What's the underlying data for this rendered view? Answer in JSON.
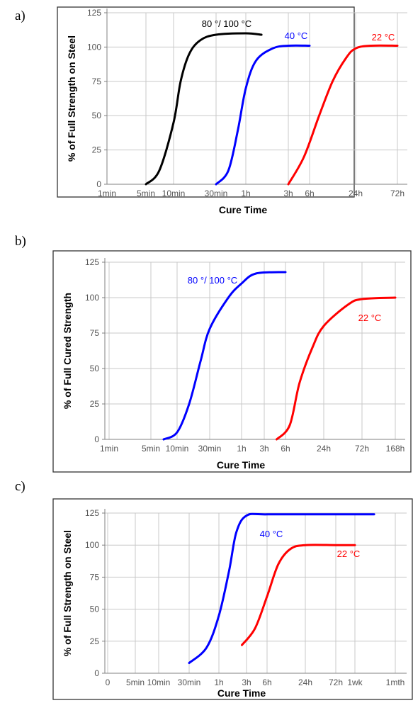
{
  "panels": [
    {
      "letter": "a)"
    },
    {
      "letter": "b)"
    },
    {
      "letter": "c)"
    }
  ],
  "chart_data": [
    {
      "type": "line",
      "title": "",
      "xlabel": "Cure Time",
      "ylabel": "% of Full Strength on Steel",
      "x_scale": "log",
      "x_ticks": [
        "1min",
        "5min",
        "10min",
        "30min",
        "1h",
        "3h",
        "6h",
        "24h",
        "72h"
      ],
      "y_ticks": [
        0,
        25,
        50,
        75,
        100,
        125
      ],
      "ylim": [
        0,
        125
      ],
      "grid": true,
      "series": [
        {
          "name": "80 °/ 100 °C",
          "color": "#000000",
          "points": [
            [
              "5min",
              0
            ],
            [
              "7min",
              10
            ],
            [
              "10min",
              45
            ],
            [
              "12min",
              75
            ],
            [
              "15min",
              95
            ],
            [
              "20min",
              105
            ],
            [
              "30min",
              109
            ],
            [
              "1h",
              110
            ],
            [
              "1.5h",
              109
            ]
          ]
        },
        {
          "name": "40 °C",
          "color": "#0000ff",
          "points": [
            [
              "30min",
              0
            ],
            [
              "40min",
              10
            ],
            [
              "50min",
              40
            ],
            [
              "1h",
              70
            ],
            [
              "1.3h",
              90
            ],
            [
              "2h",
              99
            ],
            [
              "3h",
              101
            ],
            [
              "6h",
              101
            ]
          ]
        },
        {
          "name": "22 °C",
          "color": "#ff0000",
          "points": [
            [
              "3h",
              0
            ],
            [
              "5h",
              20
            ],
            [
              "8h",
              50
            ],
            [
              "12h",
              75
            ],
            [
              "18h",
              92
            ],
            [
              "24h",
              99
            ],
            [
              "36h",
              101
            ],
            [
              "72h",
              101
            ]
          ]
        }
      ]
    },
    {
      "type": "line",
      "title": "",
      "xlabel": "Cure Time",
      "ylabel": "% of Full Cured Strength",
      "x_scale": "log",
      "x_ticks": [
        "1min",
        "5min",
        "10min",
        "30min",
        "1h",
        "3h",
        "6h",
        "24h",
        "72h",
        "168h"
      ],
      "y_ticks": [
        0,
        25,
        50,
        75,
        100,
        125
      ],
      "ylim": [
        0,
        125
      ],
      "grid": true,
      "series": [
        {
          "name": "80 °/ 100 °C",
          "color": "#0000ff",
          "points": [
            [
              "7min",
              0
            ],
            [
              "10min",
              5
            ],
            [
              "15min",
              25
            ],
            [
              "22min",
              55
            ],
            [
              "30min",
              78
            ],
            [
              "45min",
              100
            ],
            [
              "1h",
              110
            ],
            [
              "2h",
              117
            ],
            [
              "6h",
              118
            ]
          ]
        },
        {
          "name": "22 °C",
          "color": "#ff0000",
          "points": [
            [
              "4.5h",
              0
            ],
            [
              "7h",
              10
            ],
            [
              "10h",
              40
            ],
            [
              "16h",
              65
            ],
            [
              "24h",
              80
            ],
            [
              "48h",
              95
            ],
            [
              "72h",
              99
            ],
            [
              "168h",
              100
            ]
          ]
        }
      ]
    },
    {
      "type": "line",
      "title": "",
      "xlabel": "Cure Time",
      "ylabel": "% of Full Strength on Steel",
      "x_scale": "log",
      "x_ticks": [
        "0",
        "5min",
        "10min",
        "30min",
        "1h",
        "3h",
        "6h",
        "24h",
        "72h",
        "1wk",
        "1mth"
      ],
      "y_ticks": [
        0,
        25,
        50,
        75,
        100,
        125
      ],
      "ylim": [
        0,
        125
      ],
      "grid": true,
      "series": [
        {
          "name": "40 °C",
          "color": "#0000ff",
          "points": [
            [
              "30min",
              8
            ],
            [
              "45min",
              20
            ],
            [
              "1h",
              45
            ],
            [
              "1.5h",
              80
            ],
            [
              "2h",
              110
            ],
            [
              "3h",
              123
            ],
            [
              "6h",
              124
            ],
            [
              "72h",
              124
            ],
            [
              "2wk",
              124
            ]
          ]
        },
        {
          "name": "22 °C",
          "color": "#ff0000",
          "points": [
            [
              "2.5h",
              22
            ],
            [
              "4h",
              35
            ],
            [
              "6h",
              60
            ],
            [
              "9h",
              85
            ],
            [
              "14h",
              97
            ],
            [
              "24h",
              100
            ],
            [
              "72h",
              100
            ],
            [
              "1wk",
              100
            ]
          ]
        }
      ]
    }
  ]
}
